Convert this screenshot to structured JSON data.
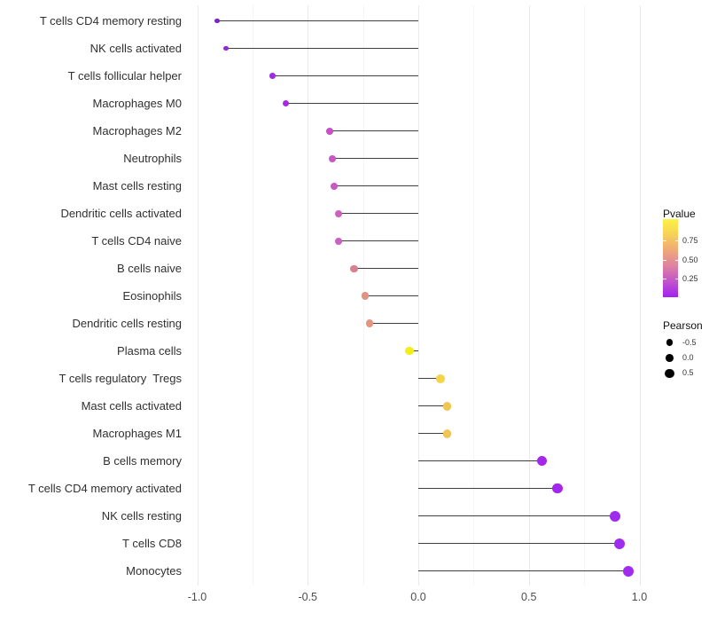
{
  "chart_data": {
    "type": "lollipop",
    "title": "",
    "xlabel": "",
    "ylabel": "",
    "xlim": [
      -1.05,
      1.08
    ],
    "grid": "on",
    "x_ticks": [
      {
        "label": "-1.0",
        "value": -1.0
      },
      {
        "label": "-0.5",
        "value": -0.5
      },
      {
        "label": "0.0",
        "value": 0.0
      },
      {
        "label": "0.5",
        "value": 0.5
      },
      {
        "label": "1.0",
        "value": 1.0
      }
    ],
    "x_minor_ticks": [
      -0.75,
      -0.25,
      0.25,
      0.75
    ],
    "stem_color": "#3f3f3f",
    "rows": [
      {
        "label": "T cells CD4 memory resting",
        "pearson": -0.91,
        "dot_color": "#7E22CC"
      },
      {
        "label": "NK cells activated",
        "pearson": -0.87,
        "dot_color": "#9129D9"
      },
      {
        "label": "T cells follicular helper",
        "pearson": -0.66,
        "dot_color": "#A02BE4"
      },
      {
        "label": "Macrophages M0",
        "pearson": -0.6,
        "dot_color": "#A52BE8"
      },
      {
        "label": "Macrophages M2",
        "pearson": -0.4,
        "dot_color": "#C750C6"
      },
      {
        "label": "Neutrophils",
        "pearson": -0.39,
        "dot_color": "#C956C5"
      },
      {
        "label": "Mast cells resting",
        "pearson": -0.38,
        "dot_color": "#CA58C3"
      },
      {
        "label": "Dendritic cells activated",
        "pearson": -0.36,
        "dot_color": "#CC60BE"
      },
      {
        "label": "T cells CD4 naive",
        "pearson": -0.36,
        "dot_color": "#CC5FBF"
      },
      {
        "label": "B cells naive",
        "pearson": -0.29,
        "dot_color": "#DB7E92"
      },
      {
        "label": "Eosinophils",
        "pearson": -0.24,
        "dot_color": "#E39183"
      },
      {
        "label": "Dendritic cells resting",
        "pearson": -0.22,
        "dot_color": "#E5947F"
      },
      {
        "label": "Plasma cells",
        "pearson": -0.04,
        "dot_color": "#F2EE18"
      },
      {
        "label": "T cells regulatory  Tregs",
        "pearson": 0.1,
        "dot_color": "#F4D44C"
      },
      {
        "label": "Mast cells activated",
        "pearson": 0.13,
        "dot_color": "#F1C64F"
      },
      {
        "label": "Macrophages M1",
        "pearson": 0.13,
        "dot_color": "#F0C455"
      },
      {
        "label": "B cells memory",
        "pearson": 0.56,
        "dot_color": "#A428EA"
      },
      {
        "label": "T cells CD4 memory activated",
        "pearson": 0.63,
        "dot_color": "#A425EC"
      },
      {
        "label": "NK cells resting",
        "pearson": 0.89,
        "dot_color": "#9F2BEE"
      },
      {
        "label": "T cells CD8",
        "pearson": 0.91,
        "dot_color": "#A02CF0"
      },
      {
        "label": "Monocytes",
        "pearson": 0.95,
        "dot_color": "#A02CF0"
      }
    ],
    "legend_pvalue": {
      "title": "Pvalue",
      "tick_labels": [
        "0.75",
        "0.50",
        "0.25"
      ],
      "gradient_stops": [
        "#A321F1",
        "#C253CB",
        "#DE82A2",
        "#EFA878",
        "#F7D058",
        "#FCF243"
      ]
    },
    "legend_pearson": {
      "title": "Pearson",
      "entries": [
        {
          "label": "-0.5",
          "dia": 7.3
        },
        {
          "label": "0.0",
          "dia": 8.8
        },
        {
          "label": "0.5",
          "dia": 10.2
        }
      ]
    }
  }
}
